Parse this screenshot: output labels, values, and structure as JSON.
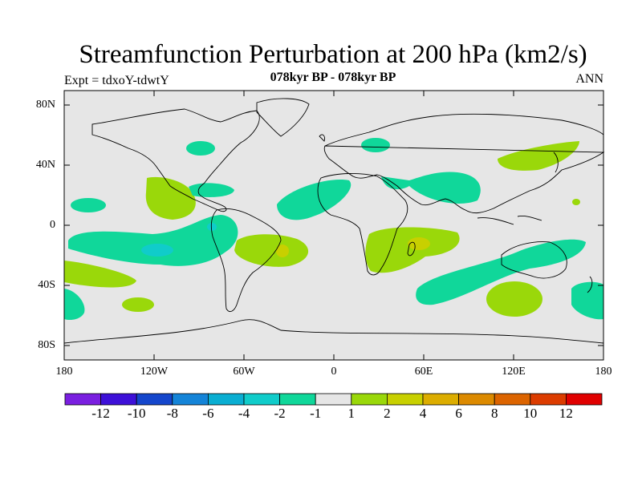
{
  "title": "Streamfunction Perturbation at 200 hPa (km2/s)",
  "subtitle": "078kyr BP - 078kyr BP",
  "experiment": "Expt = tdxoY-tdwtY",
  "season": "ANN",
  "lat_labels": [
    "80N",
    "40N",
    "0",
    "40S",
    "80S"
  ],
  "lon_labels": [
    "180",
    "120W",
    "60W",
    "0",
    "60E",
    "120E",
    "180"
  ],
  "colorbar": {
    "labels": [
      "-12",
      "-10",
      "-8",
      "-6",
      "-4",
      "-2",
      "-1",
      "1",
      "2",
      "4",
      "6",
      "8",
      "10",
      "12"
    ],
    "colors": [
      "#7a1fe0",
      "#3d10d8",
      "#1446cc",
      "#1484d8",
      "#0aaed2",
      "#10ccca",
      "#10d79a",
      "#e6e6e6",
      "#9ad80a",
      "#c8d000",
      "#dcad00",
      "#dc8a00",
      "#dc6400",
      "#dc3c00",
      "#e00000"
    ]
  },
  "colors": {
    "background_land_ocean": "#e6e6e6",
    "pos1": "#9ad80a",
    "neg1": "#10d79a",
    "neg2": "#10ccca",
    "pos2": "#c8d000",
    "coast": "#000000"
  }
}
